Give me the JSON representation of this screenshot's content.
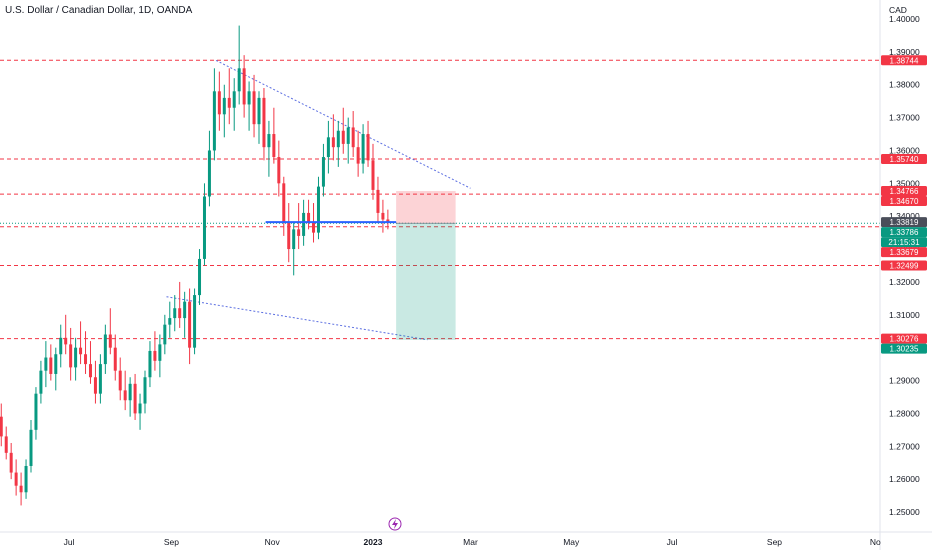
{
  "chart_data": {
    "type": "candlestick",
    "title": "U.S. Dollar / Canadian Dollar, 1D, OANDA",
    "currency": "CAD",
    "y_axis": {
      "ticks": [
        "1.40000",
        "1.39000",
        "1.38000",
        "1.37000",
        "1.36000",
        "1.35000",
        "1.34000",
        "1.33000",
        "1.32000",
        "1.31000",
        "1.30000",
        "1.29000",
        "1.28000",
        "1.27000",
        "1.26000",
        "1.25000"
      ],
      "ylim": [
        1.246,
        1.403
      ]
    },
    "x_axis": {
      "ticks": [
        "Jul",
        "Sep",
        "Nov",
        "2023",
        "Mar",
        "May",
        "Jul",
        "Sep",
        "No"
      ]
    },
    "horizontal_levels": [
      {
        "label": "1.38744",
        "value": 1.38744,
        "color": "#f23645"
      },
      {
        "label": "1.35740",
        "value": 1.3574,
        "color": "#f23645"
      },
      {
        "label": "1.34670",
        "value": 1.3467,
        "color": "#f23645"
      },
      {
        "label": "1.33679",
        "value": 1.33679,
        "color": "#f23645"
      },
      {
        "label": "1.32499",
        "value": 1.32499,
        "color": "#f23645"
      },
      {
        "label": "1.30276",
        "value": 1.30276,
        "color": "#f23645"
      }
    ],
    "price_tags": [
      {
        "label": "1.38744",
        "value": 1.38744,
        "color": "#f23645"
      },
      {
        "label": "1.35740",
        "value": 1.3574,
        "color": "#f23645"
      },
      {
        "label": "1.34766",
        "value": 1.34766,
        "color": "#f23645"
      },
      {
        "label": "1.34670",
        "value": 1.3467,
        "color": "#f23645"
      },
      {
        "label": "1.33819",
        "value": 1.33819,
        "color": "#4a4e5a"
      },
      {
        "label": "1.33786",
        "value": 1.33786,
        "color": "#089981"
      },
      {
        "label": "21:15:31",
        "value": 1.33786,
        "color": "#089981"
      },
      {
        "label": "1.33679",
        "value": 1.33679,
        "color": "#f23645"
      },
      {
        "label": "1.32499",
        "value": 1.32499,
        "color": "#f23645"
      },
      {
        "label": "1.30276",
        "value": 1.30276,
        "color": "#f23645"
      },
      {
        "label": "1.30235",
        "value": 1.30235,
        "color": "#089981"
      }
    ],
    "position": {
      "entry": 1.33786,
      "stop": 1.34766,
      "target": 1.30235,
      "start": "2023-01-15",
      "end": "2023-02-20"
    },
    "support_line": {
      "value": 1.33819,
      "start": "2022-10-28",
      "end": "2023-01-15"
    },
    "channel": {
      "upper": [
        {
          "date": "2022-09-28",
          "value": 1.3874
        },
        {
          "date": "2023-03-01",
          "value": 1.3485
        }
      ],
      "lower": [
        {
          "date": "2022-08-29",
          "value": 1.3155
        },
        {
          "date": "2023-02-03",
          "value": 1.3024
        }
      ]
    },
    "candles": [
      [
        "2022-05-15",
        1.28,
        1.284,
        1.276,
        1.282
      ],
      [
        "2022-05-18",
        1.282,
        1.288,
        1.277,
        1.279
      ],
      [
        "2022-05-21",
        1.279,
        1.283,
        1.27,
        1.273
      ],
      [
        "2022-05-24",
        1.273,
        1.276,
        1.266,
        1.268
      ],
      [
        "2022-05-27",
        1.268,
        1.271,
        1.26,
        1.262
      ],
      [
        "2022-05-30",
        1.262,
        1.266,
        1.255,
        1.258
      ],
      [
        "2022-06-02",
        1.258,
        1.262,
        1.252,
        1.256
      ],
      [
        "2022-06-05",
        1.256,
        1.266,
        1.254,
        1.264
      ],
      [
        "2022-06-08",
        1.264,
        1.278,
        1.262,
        1.275
      ],
      [
        "2022-06-11",
        1.275,
        1.288,
        1.272,
        1.286
      ],
      [
        "2022-06-14",
        1.286,
        1.296,
        1.283,
        1.293
      ],
      [
        "2022-06-17",
        1.293,
        1.302,
        1.288,
        1.297
      ],
      [
        "2022-06-20",
        1.297,
        1.301,
        1.29,
        1.292
      ],
      [
        "2022-06-23",
        1.292,
        1.3,
        1.287,
        1.298
      ],
      [
        "2022-06-26",
        1.298,
        1.307,
        1.294,
        1.303
      ],
      [
        "2022-06-29",
        1.303,
        1.31,
        1.298,
        1.301
      ],
      [
        "2022-07-02",
        1.301,
        1.306,
        1.29,
        1.294
      ],
      [
        "2022-07-05",
        1.294,
        1.303,
        1.29,
        1.3
      ],
      [
        "2022-07-08",
        1.3,
        1.308,
        1.295,
        1.298
      ],
      [
        "2022-07-11",
        1.298,
        1.305,
        1.292,
        1.295
      ],
      [
        "2022-07-14",
        1.295,
        1.302,
        1.289,
        1.291
      ],
      [
        "2022-07-17",
        1.291,
        1.296,
        1.283,
        1.286
      ],
      [
        "2022-07-20",
        1.286,
        1.298,
        1.283,
        1.295
      ],
      [
        "2022-07-23",
        1.295,
        1.307,
        1.292,
        1.304
      ],
      [
        "2022-07-26",
        1.304,
        1.312,
        1.298,
        1.3
      ],
      [
        "2022-07-29",
        1.3,
        1.304,
        1.29,
        1.293
      ],
      [
        "2022-08-01",
        1.293,
        1.297,
        1.284,
        1.287
      ],
      [
        "2022-08-04",
        1.287,
        1.293,
        1.281,
        1.284
      ],
      [
        "2022-08-07",
        1.284,
        1.291,
        1.279,
        1.289
      ],
      [
        "2022-08-10",
        1.289,
        1.292,
        1.278,
        1.28
      ],
      [
        "2022-08-13",
        1.28,
        1.286,
        1.275,
        1.283
      ],
      [
        "2022-08-16",
        1.283,
        1.293,
        1.28,
        1.291
      ],
      [
        "2022-08-19",
        1.291,
        1.302,
        1.288,
        1.299
      ],
      [
        "2022-08-22",
        1.299,
        1.305,
        1.293,
        1.296
      ],
      [
        "2022-08-25",
        1.296,
        1.304,
        1.291,
        1.301
      ],
      [
        "2022-08-28",
        1.301,
        1.31,
        1.298,
        1.307
      ],
      [
        "2022-08-31",
        1.307,
        1.314,
        1.303,
        1.309
      ],
      [
        "2022-09-03",
        1.309,
        1.316,
        1.305,
        1.312
      ],
      [
        "2022-09-06",
        1.312,
        1.32,
        1.306,
        1.309
      ],
      [
        "2022-09-09",
        1.309,
        1.317,
        1.303,
        1.314
      ],
      [
        "2022-09-12",
        1.314,
        1.318,
        1.295,
        1.3
      ],
      [
        "2022-09-15",
        1.3,
        1.318,
        1.298,
        1.316
      ],
      [
        "2022-09-18",
        1.316,
        1.33,
        1.313,
        1.327
      ],
      [
        "2022-09-21",
        1.327,
        1.35,
        1.325,
        1.346
      ],
      [
        "2022-09-24",
        1.346,
        1.366,
        1.343,
        1.36
      ],
      [
        "2022-09-27",
        1.36,
        1.385,
        1.357,
        1.378
      ],
      [
        "2022-09-30",
        1.378,
        1.384,
        1.366,
        1.371
      ],
      [
        "2022-10-03",
        1.371,
        1.38,
        1.364,
        1.376
      ],
      [
        "2022-10-06",
        1.376,
        1.385,
        1.368,
        1.373
      ],
      [
        "2022-10-09",
        1.373,
        1.382,
        1.366,
        1.378
      ],
      [
        "2022-10-12",
        1.378,
        1.398,
        1.374,
        1.385
      ],
      [
        "2022-10-15",
        1.385,
        1.389,
        1.37,
        1.374
      ],
      [
        "2022-10-18",
        1.374,
        1.381,
        1.366,
        1.378
      ],
      [
        "2022-10-21",
        1.378,
        1.383,
        1.364,
        1.368
      ],
      [
        "2022-10-24",
        1.368,
        1.378,
        1.362,
        1.376
      ],
      [
        "2022-10-27",
        1.376,
        1.379,
        1.357,
        1.361
      ],
      [
        "2022-10-30",
        1.361,
        1.369,
        1.352,
        1.365
      ],
      [
        "2022-11-02",
        1.365,
        1.373,
        1.356,
        1.358
      ],
      [
        "2022-11-05",
        1.358,
        1.363,
        1.346,
        1.35
      ],
      [
        "2022-11-08",
        1.35,
        1.352,
        1.334,
        1.338
      ],
      [
        "2022-11-11",
        1.338,
        1.344,
        1.326,
        1.33
      ],
      [
        "2022-11-14",
        1.33,
        1.338,
        1.322,
        1.336
      ],
      [
        "2022-11-17",
        1.336,
        1.344,
        1.33,
        1.334
      ],
      [
        "2022-11-20",
        1.334,
        1.345,
        1.331,
        1.341
      ],
      [
        "2022-11-23",
        1.341,
        1.345,
        1.336,
        1.338
      ],
      [
        "2022-11-26",
        1.338,
        1.344,
        1.332,
        1.335
      ],
      [
        "2022-11-29",
        1.335,
        1.352,
        1.333,
        1.349
      ],
      [
        "2022-12-02",
        1.349,
        1.362,
        1.346,
        1.358
      ],
      [
        "2022-12-05",
        1.358,
        1.369,
        1.353,
        1.364
      ],
      [
        "2022-12-08",
        1.364,
        1.371,
        1.357,
        1.361
      ],
      [
        "2022-12-11",
        1.361,
        1.369,
        1.355,
        1.366
      ],
      [
        "2022-12-14",
        1.366,
        1.373,
        1.359,
        1.362
      ],
      [
        "2022-12-17",
        1.362,
        1.37,
        1.356,
        1.367
      ],
      [
        "2022-12-20",
        1.367,
        1.372,
        1.358,
        1.361
      ],
      [
        "2022-12-23",
        1.361,
        1.366,
        1.352,
        1.356
      ],
      [
        "2022-12-26",
        1.356,
        1.368,
        1.353,
        1.365
      ],
      [
        "2022-12-29",
        1.365,
        1.369,
        1.355,
        1.357
      ],
      [
        "2023-01-01",
        1.357,
        1.362,
        1.345,
        1.348
      ],
      [
        "2023-01-04",
        1.348,
        1.352,
        1.338,
        1.341
      ],
      [
        "2023-01-07",
        1.341,
        1.345,
        1.335,
        1.339
      ],
      [
        "2023-01-10",
        1.339,
        1.342,
        1.336,
        1.338
      ]
    ]
  }
}
